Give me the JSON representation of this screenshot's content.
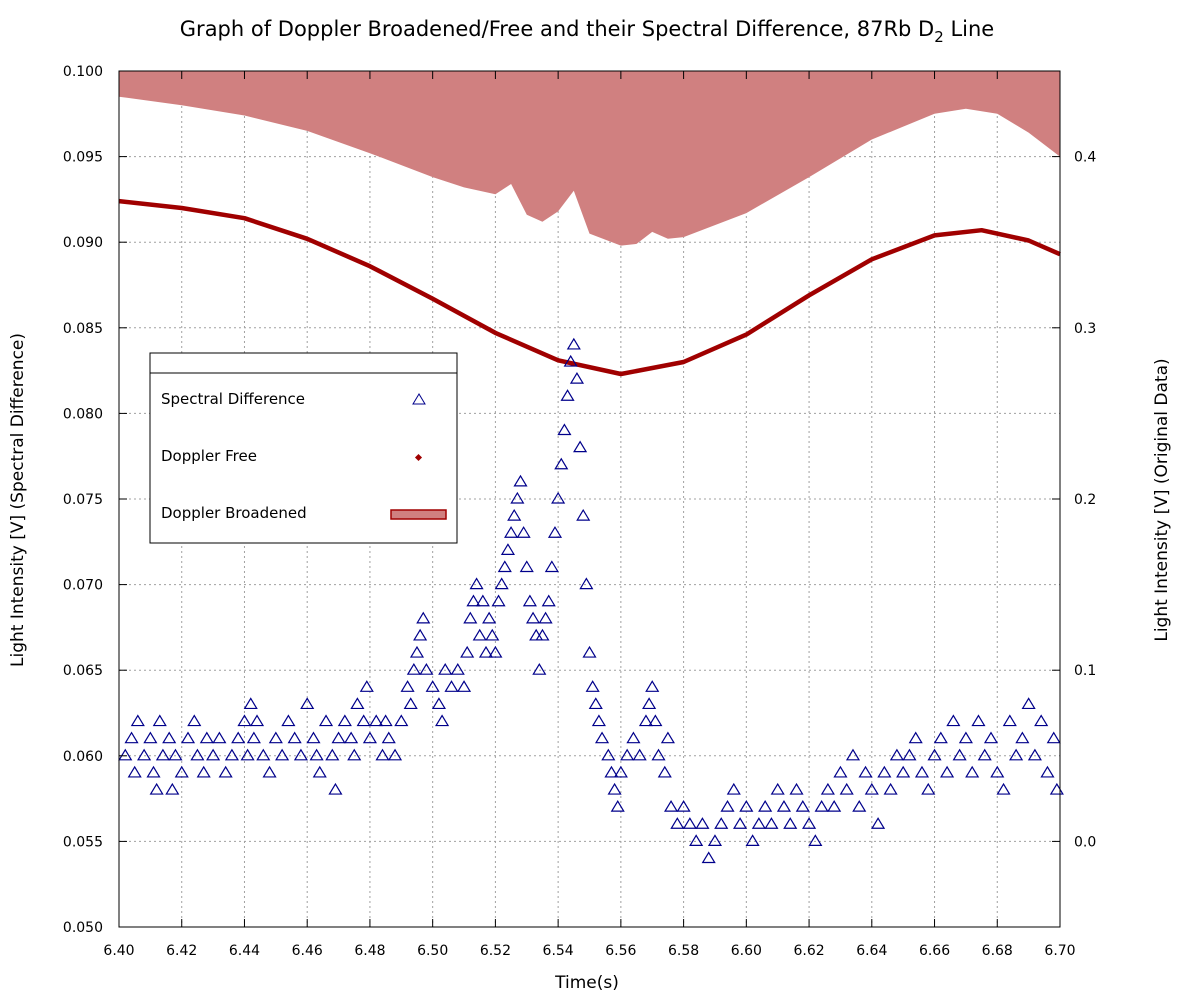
{
  "chart_data": {
    "type": "scatter",
    "title": "Graph of Doppler Broadened/Free and their Spectral Difference, 87Rb D",
    "title_sub": "2",
    "title_tail": " Line",
    "xlabel": "Time(s)",
    "ylabel_left": "Light Intensity [V] (Spectral Difference)",
    "ylabel_right": "Light Intensity [V] (Original Data)",
    "xlim": [
      6.4,
      6.7
    ],
    "ylim_left": [
      0.05,
      0.1
    ],
    "ylim_right": [
      -0.05,
      0.45
    ],
    "x_ticks": [
      "6.40",
      "6.42",
      "6.44",
      "6.46",
      "6.48",
      "6.50",
      "6.52",
      "6.54",
      "6.56",
      "6.58",
      "6.60",
      "6.62",
      "6.64",
      "6.66",
      "6.68",
      "6.70"
    ],
    "y_left_ticks": [
      "0.050",
      "0.055",
      "0.060",
      "0.065",
      "0.070",
      "0.075",
      "0.080",
      "0.085",
      "0.090",
      "0.095",
      "0.100"
    ],
    "y_right_ticks": [
      "0.0",
      "0.1",
      "0.2",
      "0.3",
      "0.4"
    ],
    "grid": true,
    "legend_position": "left-middle",
    "series": [
      {
        "name": "Spectral Difference",
        "axis": "left",
        "marker": "triangle",
        "color": "#00008b",
        "points": [
          [
            6.402,
            0.06
          ],
          [
            6.404,
            0.061
          ],
          [
            6.405,
            0.059
          ],
          [
            6.406,
            0.062
          ],
          [
            6.408,
            0.06
          ],
          [
            6.41,
            0.061
          ],
          [
            6.411,
            0.059
          ],
          [
            6.412,
            0.058
          ],
          [
            6.413,
            0.062
          ],
          [
            6.414,
            0.06
          ],
          [
            6.416,
            0.061
          ],
          [
            6.417,
            0.058
          ],
          [
            6.418,
            0.06
          ],
          [
            6.42,
            0.059
          ],
          [
            6.422,
            0.061
          ],
          [
            6.424,
            0.062
          ],
          [
            6.425,
            0.06
          ],
          [
            6.427,
            0.059
          ],
          [
            6.428,
            0.061
          ],
          [
            6.43,
            0.06
          ],
          [
            6.432,
            0.061
          ],
          [
            6.434,
            0.059
          ],
          [
            6.436,
            0.06
          ],
          [
            6.438,
            0.061
          ],
          [
            6.44,
            0.062
          ],
          [
            6.441,
            0.06
          ],
          [
            6.442,
            0.063
          ],
          [
            6.443,
            0.061
          ],
          [
            6.444,
            0.062
          ],
          [
            6.446,
            0.06
          ],
          [
            6.448,
            0.059
          ],
          [
            6.45,
            0.061
          ],
          [
            6.452,
            0.06
          ],
          [
            6.454,
            0.062
          ],
          [
            6.456,
            0.061
          ],
          [
            6.458,
            0.06
          ],
          [
            6.46,
            0.063
          ],
          [
            6.462,
            0.061
          ],
          [
            6.463,
            0.06
          ],
          [
            6.464,
            0.059
          ],
          [
            6.466,
            0.062
          ],
          [
            6.468,
            0.06
          ],
          [
            6.469,
            0.058
          ],
          [
            6.47,
            0.061
          ],
          [
            6.472,
            0.062
          ],
          [
            6.474,
            0.061
          ],
          [
            6.475,
            0.06
          ],
          [
            6.476,
            0.063
          ],
          [
            6.478,
            0.062
          ],
          [
            6.479,
            0.064
          ],
          [
            6.48,
            0.061
          ],
          [
            6.482,
            0.062
          ],
          [
            6.484,
            0.06
          ],
          [
            6.485,
            0.062
          ],
          [
            6.486,
            0.061
          ],
          [
            6.488,
            0.06
          ],
          [
            6.49,
            0.062
          ],
          [
            6.492,
            0.064
          ],
          [
            6.493,
            0.063
          ],
          [
            6.494,
            0.065
          ],
          [
            6.495,
            0.066
          ],
          [
            6.496,
            0.067
          ],
          [
            6.497,
            0.068
          ],
          [
            6.498,
            0.065
          ],
          [
            6.5,
            0.064
          ],
          [
            6.502,
            0.063
          ],
          [
            6.503,
            0.062
          ],
          [
            6.504,
            0.065
          ],
          [
            6.506,
            0.064
          ],
          [
            6.508,
            0.065
          ],
          [
            6.51,
            0.064
          ],
          [
            6.511,
            0.066
          ],
          [
            6.512,
            0.068
          ],
          [
            6.513,
            0.069
          ],
          [
            6.514,
            0.07
          ],
          [
            6.515,
            0.067
          ],
          [
            6.516,
            0.069
          ],
          [
            6.517,
            0.066
          ],
          [
            6.518,
            0.068
          ],
          [
            6.519,
            0.067
          ],
          [
            6.52,
            0.066
          ],
          [
            6.521,
            0.069
          ],
          [
            6.522,
            0.07
          ],
          [
            6.523,
            0.071
          ],
          [
            6.524,
            0.072
          ],
          [
            6.525,
            0.073
          ],
          [
            6.526,
            0.074
          ],
          [
            6.527,
            0.075
          ],
          [
            6.528,
            0.076
          ],
          [
            6.529,
            0.073
          ],
          [
            6.53,
            0.071
          ],
          [
            6.531,
            0.069
          ],
          [
            6.532,
            0.068
          ],
          [
            6.533,
            0.067
          ],
          [
            6.534,
            0.065
          ],
          [
            6.535,
            0.067
          ],
          [
            6.536,
            0.068
          ],
          [
            6.537,
            0.069
          ],
          [
            6.538,
            0.071
          ],
          [
            6.539,
            0.073
          ],
          [
            6.54,
            0.075
          ],
          [
            6.541,
            0.077
          ],
          [
            6.542,
            0.079
          ],
          [
            6.543,
            0.081
          ],
          [
            6.544,
            0.083
          ],
          [
            6.545,
            0.084
          ],
          [
            6.546,
            0.082
          ],
          [
            6.547,
            0.078
          ],
          [
            6.548,
            0.074
          ],
          [
            6.549,
            0.07
          ],
          [
            6.55,
            0.066
          ],
          [
            6.551,
            0.064
          ],
          [
            6.552,
            0.063
          ],
          [
            6.553,
            0.062
          ],
          [
            6.554,
            0.061
          ],
          [
            6.556,
            0.06
          ],
          [
            6.557,
            0.059
          ],
          [
            6.558,
            0.058
          ],
          [
            6.559,
            0.057
          ],
          [
            6.56,
            0.059
          ],
          [
            6.562,
            0.06
          ],
          [
            6.564,
            0.061
          ],
          [
            6.566,
            0.06
          ],
          [
            6.568,
            0.062
          ],
          [
            6.569,
            0.063
          ],
          [
            6.57,
            0.064
          ],
          [
            6.571,
            0.062
          ],
          [
            6.572,
            0.06
          ],
          [
            6.574,
            0.059
          ],
          [
            6.575,
            0.061
          ],
          [
            6.576,
            0.057
          ],
          [
            6.578,
            0.056
          ],
          [
            6.58,
            0.057
          ],
          [
            6.582,
            0.056
          ],
          [
            6.584,
            0.055
          ],
          [
            6.586,
            0.056
          ],
          [
            6.588,
            0.054
          ],
          [
            6.59,
            0.055
          ],
          [
            6.592,
            0.056
          ],
          [
            6.594,
            0.057
          ],
          [
            6.596,
            0.058
          ],
          [
            6.598,
            0.056
          ],
          [
            6.6,
            0.057
          ],
          [
            6.602,
            0.055
          ],
          [
            6.604,
            0.056
          ],
          [
            6.606,
            0.057
          ],
          [
            6.608,
            0.056
          ],
          [
            6.61,
            0.058
          ],
          [
            6.612,
            0.057
          ],
          [
            6.614,
            0.056
          ],
          [
            6.616,
            0.058
          ],
          [
            6.618,
            0.057
          ],
          [
            6.62,
            0.056
          ],
          [
            6.622,
            0.055
          ],
          [
            6.624,
            0.057
          ],
          [
            6.626,
            0.058
          ],
          [
            6.628,
            0.057
          ],
          [
            6.63,
            0.059
          ],
          [
            6.632,
            0.058
          ],
          [
            6.634,
            0.06
          ],
          [
            6.636,
            0.057
          ],
          [
            6.638,
            0.059
          ],
          [
            6.64,
            0.058
          ],
          [
            6.642,
            0.056
          ],
          [
            6.644,
            0.059
          ],
          [
            6.646,
            0.058
          ],
          [
            6.648,
            0.06
          ],
          [
            6.65,
            0.059
          ],
          [
            6.652,
            0.06
          ],
          [
            6.654,
            0.061
          ],
          [
            6.656,
            0.059
          ],
          [
            6.658,
            0.058
          ],
          [
            6.66,
            0.06
          ],
          [
            6.662,
            0.061
          ],
          [
            6.664,
            0.059
          ],
          [
            6.666,
            0.062
          ],
          [
            6.668,
            0.06
          ],
          [
            6.67,
            0.061
          ],
          [
            6.672,
            0.059
          ],
          [
            6.674,
            0.062
          ],
          [
            6.676,
            0.06
          ],
          [
            6.678,
            0.061
          ],
          [
            6.68,
            0.059
          ],
          [
            6.682,
            0.058
          ],
          [
            6.684,
            0.062
          ],
          [
            6.686,
            0.06
          ],
          [
            6.688,
            0.061
          ],
          [
            6.69,
            0.063
          ],
          [
            6.692,
            0.06
          ],
          [
            6.694,
            0.062
          ],
          [
            6.696,
            0.059
          ],
          [
            6.698,
            0.061
          ],
          [
            6.699,
            0.058
          ]
        ]
      },
      {
        "name": "Doppler Free",
        "axis": "right",
        "marker": "dot",
        "color": "#a00000",
        "points": [
          [
            6.4,
            0.374
          ],
          [
            6.42,
            0.37
          ],
          [
            6.44,
            0.364
          ],
          [
            6.46,
            0.352
          ],
          [
            6.48,
            0.336
          ],
          [
            6.5,
            0.317
          ],
          [
            6.52,
            0.297
          ],
          [
            6.54,
            0.281
          ],
          [
            6.56,
            0.273
          ],
          [
            6.58,
            0.28
          ],
          [
            6.6,
            0.296
          ],
          [
            6.62,
            0.319
          ],
          [
            6.64,
            0.34
          ],
          [
            6.66,
            0.354
          ],
          [
            6.675,
            0.357
          ],
          [
            6.69,
            0.351
          ],
          [
            6.7,
            0.343
          ]
        ]
      },
      {
        "name": "Doppler Broadened",
        "axis": "right",
        "marker": "filled-area",
        "color": "#d08080",
        "edge_color": "#a00000",
        "points": [
          [
            6.4,
            0.435
          ],
          [
            6.42,
            0.43
          ],
          [
            6.44,
            0.424
          ],
          [
            6.46,
            0.415
          ],
          [
            6.48,
            0.402
          ],
          [
            6.5,
            0.388
          ],
          [
            6.51,
            0.382
          ],
          [
            6.52,
            0.378
          ],
          [
            6.525,
            0.384
          ],
          [
            6.53,
            0.366
          ],
          [
            6.535,
            0.362
          ],
          [
            6.54,
            0.368
          ],
          [
            6.545,
            0.38
          ],
          [
            6.55,
            0.355
          ],
          [
            6.56,
            0.348
          ],
          [
            6.565,
            0.349
          ],
          [
            6.57,
            0.356
          ],
          [
            6.575,
            0.352
          ],
          [
            6.58,
            0.353
          ],
          [
            6.6,
            0.367
          ],
          [
            6.62,
            0.388
          ],
          [
            6.64,
            0.41
          ],
          [
            6.66,
            0.425
          ],
          [
            6.67,
            0.428
          ],
          [
            6.68,
            0.425
          ],
          [
            6.69,
            0.414
          ],
          [
            6.7,
            0.4
          ]
        ]
      }
    ]
  }
}
